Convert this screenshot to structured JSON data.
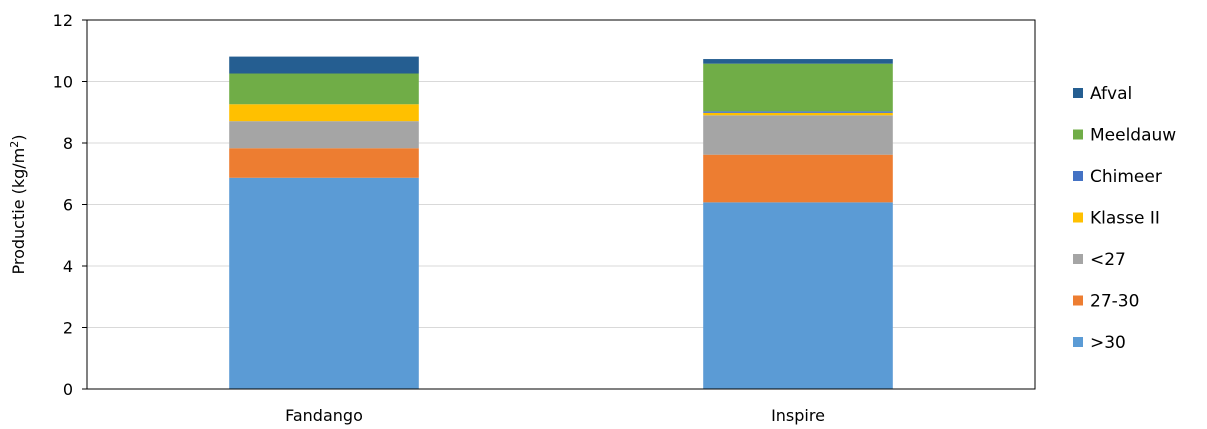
{
  "chart_data": {
    "type": "bar",
    "stacked": true,
    "categories": [
      "Fandango",
      "Inspire"
    ],
    "ylabel": "Productie (kg/m",
    "ylabel_superscript": "2",
    "ylabel_close": ")",
    "ylim": [
      0,
      12
    ],
    "yticks": [
      0,
      2,
      4,
      6,
      8,
      10,
      12
    ],
    "grid": true,
    "legend": "right",
    "series": [
      {
        "name": ">30",
        "color": "#5b9bd5",
        "values": [
          6.87,
          6.07
        ]
      },
      {
        "name": "27-30",
        "color": "#ed7d31",
        "values": [
          0.96,
          1.55
        ]
      },
      {
        "name": "<27",
        "color": "#a5a5a5",
        "values": [
          0.88,
          1.28
        ]
      },
      {
        "name": "Klasse II",
        "color": "#ffc000",
        "values": [
          0.55,
          0.08
        ]
      },
      {
        "name": "Chimeer",
        "color": "#4472c4",
        "values": [
          0.0,
          0.05
        ]
      },
      {
        "name": "Meeldauw",
        "color": "#70ad47",
        "values": [
          1.0,
          1.55
        ]
      },
      {
        "name": "Afval",
        "color": "#255e91",
        "values": [
          0.55,
          0.15
        ]
      }
    ]
  }
}
